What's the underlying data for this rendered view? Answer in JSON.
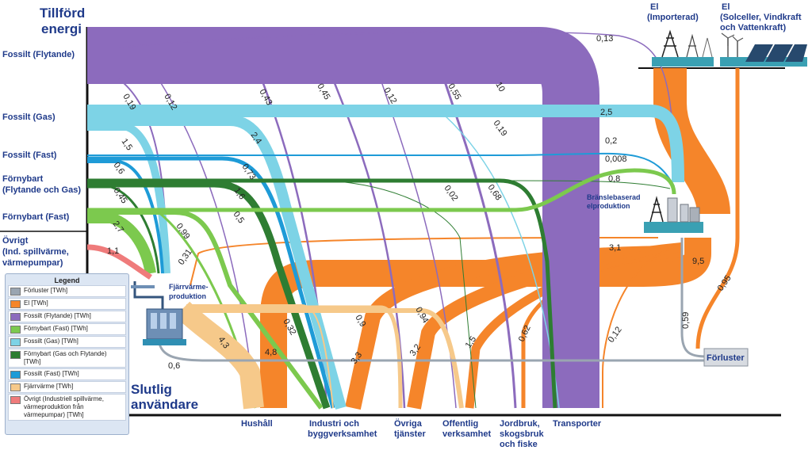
{
  "titles": {
    "input_line1": "Tillförd",
    "input_line2": "energi",
    "output_line1": "Slutlig",
    "output_line2": "användare"
  },
  "sources": {
    "fossil_liquid": "Fossilt (Flytande)",
    "fossil_gas": "Fossilt (Gas)",
    "fossil_solid": "Fossilt (Fast)",
    "renewable_liquid_gas_line1": "Förnybart",
    "renewable_liquid_gas_line2": "(Flytande och Gas)",
    "renewable_solid": "Förnybart (Fast)",
    "other_line1": "Övrigt",
    "other_line2": "(Ind. spillvärme,",
    "other_line3": "värmepumpar)",
    "el_import_line1": "El",
    "el_import_line2": "(Importerad)",
    "el_renew_line1": "El",
    "el_renew_line2": "(Solceller, Vindkraft",
    "el_renew_line3": "och Vattenkraft)"
  },
  "nodes": {
    "district_heat_line1": "Fjärrvärme-",
    "district_heat_line2": "produktion",
    "fuel_power_line1": "Bränslebaserad",
    "fuel_power_line2": "elproduktion",
    "losses": "Förluster"
  },
  "sinks": {
    "households": "Hushåll",
    "industry_line1": "Industri och",
    "industry_line2": "byggverksamhet",
    "other_services_line1": "Övriga",
    "other_services_line2": "tjänster",
    "public_line1": "Offentlig",
    "public_line2": "verksamhet",
    "agriculture_line1": "Jordbruk,",
    "agriculture_line2": "skogsbruk",
    "agriculture_line3": "och fiske",
    "transport": "Transporter"
  },
  "flow_values": {
    "liq_fuelpower": "0,13",
    "liq_dh": "0,19",
    "liq_hh": "0,12",
    "liq_ind": "0,43",
    "liq_svc": "0,45",
    "liq_pub": "0,12",
    "liq_agr": "0,55",
    "liq_trn": "10",
    "gas_fuelpower": "2,5",
    "gas_dh": "1,5",
    "gas_ind": "2,4",
    "gas_trn": "0,19",
    "sol_fuelpower": "0,2",
    "sol_dh": "0,6",
    "sol_ind": "0,73",
    "rlg_fuelpower": "0,008",
    "rlg_dh": "0,45",
    "rlg_ind": "1,6",
    "rlg_svc": "0,02",
    "rlg_trn": "0,68",
    "rs_fuelpower": "0,8",
    "rs_dh": "2,7",
    "rs_ind": "0,99",
    "rs_hh": "0,5",
    "other_dh": "1,1",
    "el_dh": "0,31",
    "el_total_fp": "3,1",
    "el_total": "9,5",
    "el_losses": "0,95",
    "el_hh": "4,8",
    "el_ind": "3,3",
    "el_svc": "3,2",
    "el_pub": "1,5",
    "el_agr": "0,62",
    "el_trn": "0,12",
    "dh_hh": "4,3",
    "dh_ind": "0,32",
    "dh_svc": "0,9",
    "dh_pub": "0,94",
    "dh_losses": "0,6",
    "fp_losses": "0,59"
  },
  "legend": {
    "title": "Legend",
    "items": [
      {
        "label": "Förluster [TWh]",
        "color": "#9aa5b1"
      },
      {
        "label": "El [TWh]",
        "color": "#f5852a"
      },
      {
        "label": "Fossilt (Flytande) [TWh]",
        "color": "#8c6bbd"
      },
      {
        "label": "Förnybart (Fast) [TWh]",
        "color": "#7cc94e"
      },
      {
        "label": "Fossilt (Gas) [TWh]",
        "color": "#7dd3e6"
      },
      {
        "label": "Förnybart (Gas och Flytande) [TWh]",
        "color": "#2e7d32"
      },
      {
        "label": "Fossilt (Fast) [TWh]",
        "color": "#1e9bd7"
      },
      {
        "label": "Fjärrvärme [TWh]",
        "color": "#f6c98a"
      },
      {
        "label": "Övrigt (Industriell spillvärme, värmeproduktion från värmepumpar) [TWh]",
        "color": "#ef7b7b"
      }
    ]
  },
  "colors": {
    "liquid": "#8c6bbd",
    "gas": "#7dd3e6",
    "solid": "#1e9bd7",
    "renew_lg": "#2e7d32",
    "renew_solid": "#7cc94e",
    "other": "#ef7b7b",
    "el": "#f5852a",
    "district_heat": "#f6c98a",
    "losses": "#9aa5b1",
    "title": "#1f3a8a"
  }
}
